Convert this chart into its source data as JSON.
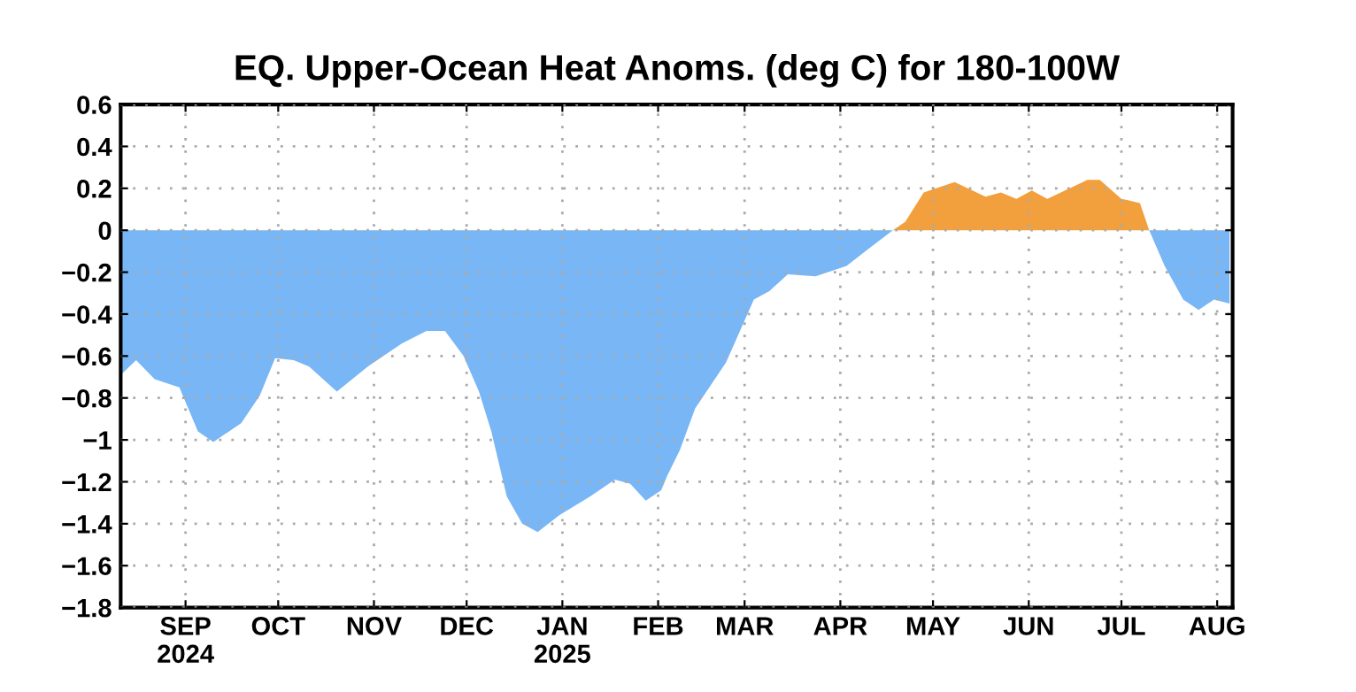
{
  "chart_data": {
    "type": "area",
    "title": "EQ. Upper-Ocean Heat Anoms. (deg C) for 180-100W",
    "series": [
      {
        "color": "#78b6f5",
        "x": [
          "2024-08-11",
          "2024-08-16",
          "2024-08-22",
          "2024-08-30",
          "2024-09-05",
          "2024-09-10",
          "2024-09-19",
          "2024-09-25",
          "2024-09-30",
          "2024-10-06",
          "2024-10-11",
          "2024-10-20",
          "2024-10-30",
          "2024-11-10",
          "2024-11-18",
          "2024-11-24",
          "2024-11-30",
          "2024-12-05",
          "2024-12-09",
          "2024-12-14",
          "2024-12-19",
          "2024-12-24",
          "2024-12-31",
          "2025-01-10",
          "2025-01-18",
          "2025-01-23",
          "2025-01-28",
          "2025-02-02",
          "2025-02-04",
          "2025-02-08",
          "2025-02-13",
          "2025-02-23",
          "2025-03-04",
          "2025-03-09",
          "2025-03-15",
          "2025-03-24",
          "2025-04-03",
          "2025-04-10",
          "2025-04-18",
          "2025-07-10",
          "2025-07-15",
          "2025-07-21",
          "2025-07-26",
          "2025-07-31",
          "2025-08-05"
        ],
        "values": [
          -0.69,
          -0.62,
          -0.71,
          -0.75,
          -0.96,
          -1.01,
          -0.92,
          -0.79,
          -0.61,
          -0.62,
          -0.65,
          -0.77,
          -0.65,
          -0.54,
          -0.48,
          -0.48,
          -0.6,
          -0.77,
          -0.96,
          -1.27,
          -1.4,
          -1.44,
          -1.36,
          -1.27,
          -1.19,
          -1.21,
          -1.29,
          -1.24,
          -1.17,
          -1.05,
          -0.85,
          -0.63,
          -0.33,
          -0.29,
          -0.21,
          -0.22,
          -0.17,
          -0.09,
          0,
          0,
          -0.17,
          -0.33,
          -0.38,
          -0.33,
          -0.35
        ]
      },
      {
        "color": "#f2a03d",
        "x": [
          "2025-04-18",
          "2025-04-22",
          "2025-04-28",
          "2025-05-08",
          "2025-05-18",
          "2025-05-23",
          "2025-05-28",
          "2025-06-02",
          "2025-06-07",
          "2025-06-20",
          "2025-06-24",
          "2025-07-01",
          "2025-07-07",
          "2025-07-10"
        ],
        "values": [
          0,
          0.04,
          0.18,
          0.23,
          0.16,
          0.18,
          0.15,
          0.19,
          0.15,
          0.24,
          0.24,
          0.15,
          0.13,
          0
        ]
      }
    ],
    "xlim": [
      "2024-08-11",
      "2025-08-06"
    ],
    "xticks": [
      {
        "value": "2024-09-01",
        "label": "SEP\n2024"
      },
      {
        "value": "2024-10-01",
        "label": "OCT"
      },
      {
        "value": "2024-11-01",
        "label": "NOV"
      },
      {
        "value": "2024-12-01",
        "label": "DEC"
      },
      {
        "value": "2025-01-01",
        "label": "JAN\n2025"
      },
      {
        "value": "2025-02-01",
        "label": "FEB"
      },
      {
        "value": "2025-03-01",
        "label": "MAR"
      },
      {
        "value": "2025-04-01",
        "label": "APR"
      },
      {
        "value": "2025-05-01",
        "label": "MAY"
      },
      {
        "value": "2025-06-01",
        "label": "JUN"
      },
      {
        "value": "2025-07-01",
        "label": "JUL"
      },
      {
        "value": "2025-08-01",
        "label": "AUG"
      }
    ],
    "ylim": [
      -1.8,
      0.6
    ],
    "yticks": [
      {
        "value": -1.8,
        "label": "−1.8"
      },
      {
        "value": -1.6,
        "label": "−1.6"
      },
      {
        "value": -1.4,
        "label": "−1.4"
      },
      {
        "value": -1.2,
        "label": "−1.2"
      },
      {
        "value": -1,
        "label": "−1"
      },
      {
        "value": -0.8,
        "label": "−0.8"
      },
      {
        "value": -0.6,
        "label": "−0.6"
      },
      {
        "value": -0.4,
        "label": "−0.4"
      },
      {
        "value": -0.2,
        "label": "−0.2"
      },
      0,
      0.2,
      0.4,
      0.6
    ],
    "grid": true
  }
}
